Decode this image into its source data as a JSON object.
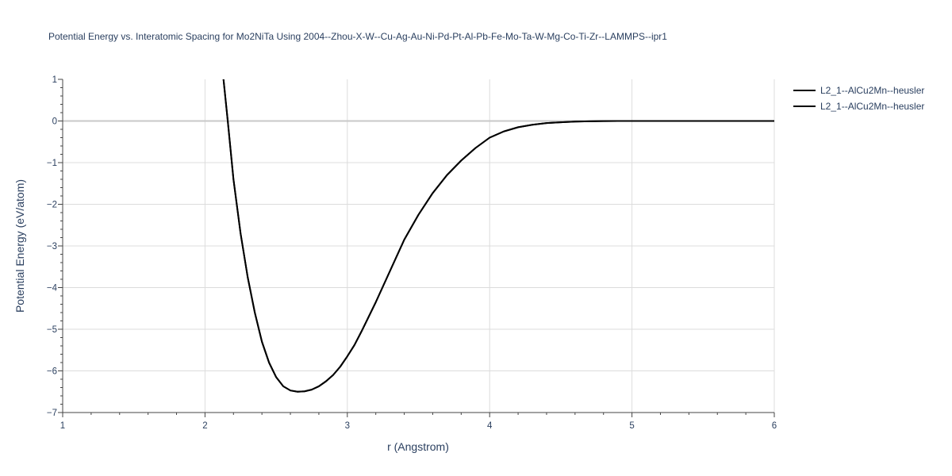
{
  "chart_data": {
    "type": "line",
    "title": "Potential Energy vs. Interatomic Spacing for Mo2NiTa Using 2004--Zhou-X-W--Cu-Ag-Au-Ni-Pd-Pt-Al-Pb-Fe-Mo-Ta-W-Mg-Co-Ti-Zr--LAMMPS--ipr1",
    "xlabel": "r (Angstrom)",
    "ylabel": "Potential Energy (eV/atom)",
    "xlim": [
      1,
      6
    ],
    "ylim": [
      -7,
      1
    ],
    "x_ticks": [
      "1",
      "2",
      "3",
      "4",
      "5",
      "6"
    ],
    "y_ticks": [
      "1",
      "0",
      "−1",
      "−2",
      "−3",
      "−4",
      "−5",
      "−6",
      "−7"
    ],
    "grid": true,
    "legend_position": "top-right",
    "series": [
      {
        "name": "L2_1--AlCu2Mn--heusler",
        "color": "#000000",
        "x": [
          2.13,
          2.16,
          2.2,
          2.25,
          2.3,
          2.35,
          2.4,
          2.45,
          2.5,
          2.55,
          2.6,
          2.65,
          2.7,
          2.75,
          2.8,
          2.85,
          2.9,
          2.95,
          3.0,
          3.05,
          3.1,
          3.2,
          3.3,
          3.4,
          3.5,
          3.6,
          3.7,
          3.8,
          3.9,
          4.0,
          4.1,
          4.2,
          4.3,
          4.4,
          4.5,
          4.6,
          4.7,
          4.8,
          4.9,
          5.0,
          5.5,
          6.0
        ],
        "y": [
          1.0,
          0.0,
          -1.4,
          -2.7,
          -3.75,
          -4.6,
          -5.3,
          -5.8,
          -6.15,
          -6.37,
          -6.47,
          -6.5,
          -6.49,
          -6.45,
          -6.37,
          -6.25,
          -6.1,
          -5.9,
          -5.65,
          -5.38,
          -5.05,
          -4.35,
          -3.6,
          -2.85,
          -2.25,
          -1.73,
          -1.3,
          -0.95,
          -0.65,
          -0.4,
          -0.25,
          -0.15,
          -0.09,
          -0.05,
          -0.03,
          -0.015,
          -0.007,
          -0.003,
          -0.001,
          0.0,
          0.0,
          0.0
        ]
      },
      {
        "name": "L2_1--AlCu2Mn--heusler",
        "color": "#000000",
        "x": [
          2.13,
          2.16,
          2.2,
          2.25,
          2.3,
          2.35,
          2.4,
          2.45,
          2.5,
          2.55,
          2.6,
          2.65,
          2.7,
          2.75,
          2.8,
          2.85,
          2.9,
          2.95,
          3.0,
          3.05,
          3.1,
          3.2,
          3.3,
          3.4,
          3.5,
          3.6,
          3.7,
          3.8,
          3.9,
          4.0,
          4.1,
          4.2,
          4.3,
          4.4,
          4.5,
          4.6,
          4.7,
          4.8,
          4.9,
          5.0,
          5.5,
          6.0
        ],
        "y": [
          1.0,
          0.0,
          -1.4,
          -2.7,
          -3.75,
          -4.6,
          -5.3,
          -5.8,
          -6.15,
          -6.37,
          -6.47,
          -6.5,
          -6.49,
          -6.45,
          -6.37,
          -6.25,
          -6.1,
          -5.9,
          -5.65,
          -5.38,
          -5.05,
          -4.35,
          -3.6,
          -2.85,
          -2.25,
          -1.73,
          -1.3,
          -0.95,
          -0.65,
          -0.4,
          -0.25,
          -0.15,
          -0.09,
          -0.05,
          -0.03,
          -0.015,
          -0.007,
          -0.003,
          -0.001,
          0.0,
          0.0,
          0.0
        ]
      }
    ]
  }
}
